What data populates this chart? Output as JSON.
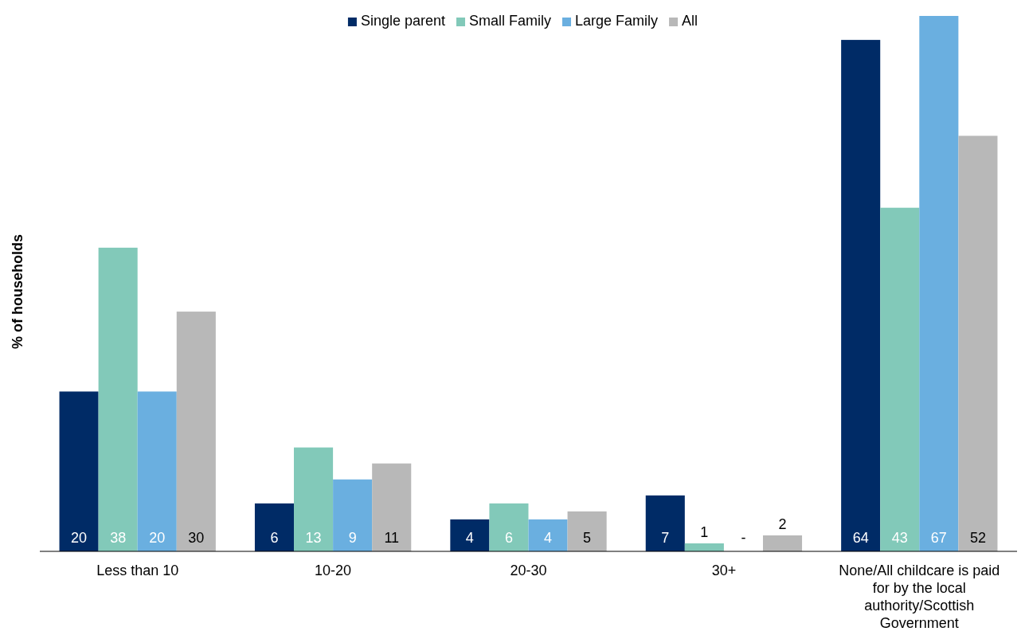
{
  "chart_data": {
    "type": "bar",
    "ylabel": "% of households",
    "legend": "top",
    "categories": [
      "Less than 10",
      "10-20",
      "20-30",
      "30+",
      "None/All childcare is paid for by the local authority/Scottish Government"
    ],
    "series": [
      {
        "name": "Single parent",
        "color": "#002b66",
        "values": [
          20,
          6,
          4,
          7,
          64
        ],
        "value_labels": [
          "20",
          "6",
          "4",
          "7",
          "64"
        ]
      },
      {
        "name": "Small Family",
        "color": "#82c9b9",
        "values": [
          38,
          13,
          6,
          1,
          43
        ],
        "value_labels": [
          "38",
          "13",
          "6",
          "1",
          "43"
        ]
      },
      {
        "name": "Large Family",
        "color": "#6aafe0",
        "values": [
          20,
          9,
          4,
          null,
          67
        ],
        "value_labels": [
          "20",
          "9",
          "4",
          "-",
          "67"
        ]
      },
      {
        "name": "All",
        "color": "#b8b8b8",
        "values": [
          30,
          11,
          5,
          2,
          52
        ],
        "value_labels": [
          "30",
          "11",
          "5",
          "2",
          "52"
        ]
      }
    ]
  }
}
